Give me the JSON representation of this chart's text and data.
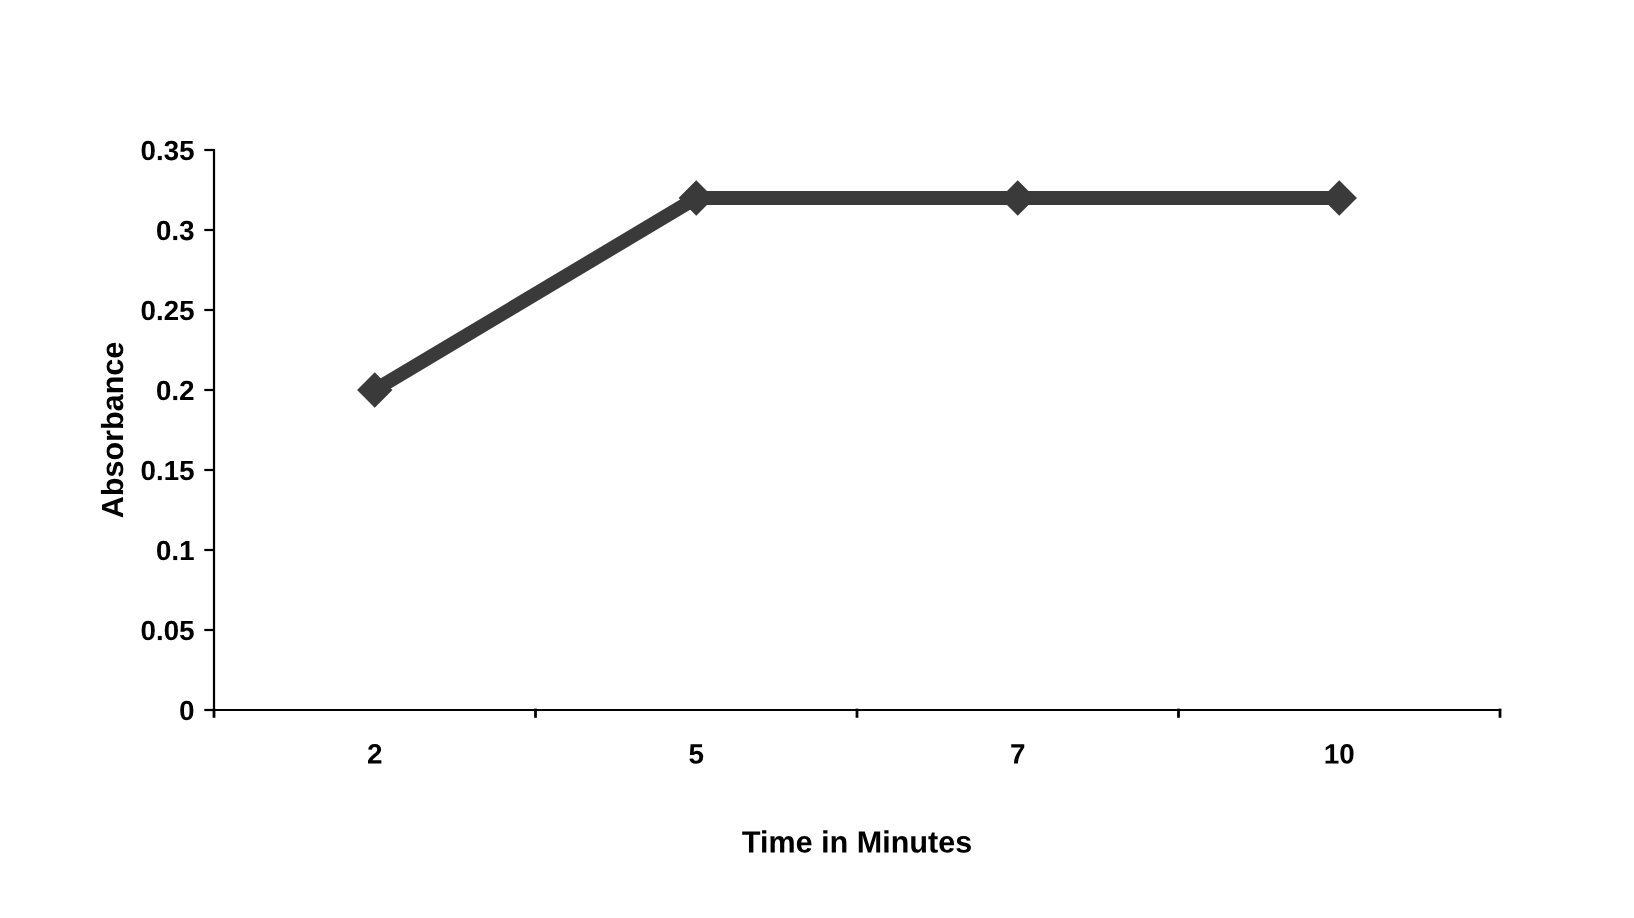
{
  "chart_data": {
    "type": "line",
    "xlabel": "Time in Minutes",
    "ylabel": "Absorbance",
    "categories": [
      "2",
      "5",
      "7",
      "10"
    ],
    "series": [
      {
        "color": "#3a3a3a",
        "values": [
          0.2,
          0.32,
          0.32,
          0.32
        ]
      }
    ],
    "ylim": [
      0,
      0.35
    ],
    "yticks": [
      0,
      0.05,
      0.1,
      0.15,
      0.2,
      0.25,
      0.3,
      0.35
    ],
    "marker": "diamond",
    "line_style": "solid",
    "grid": false,
    "legend": false
  }
}
